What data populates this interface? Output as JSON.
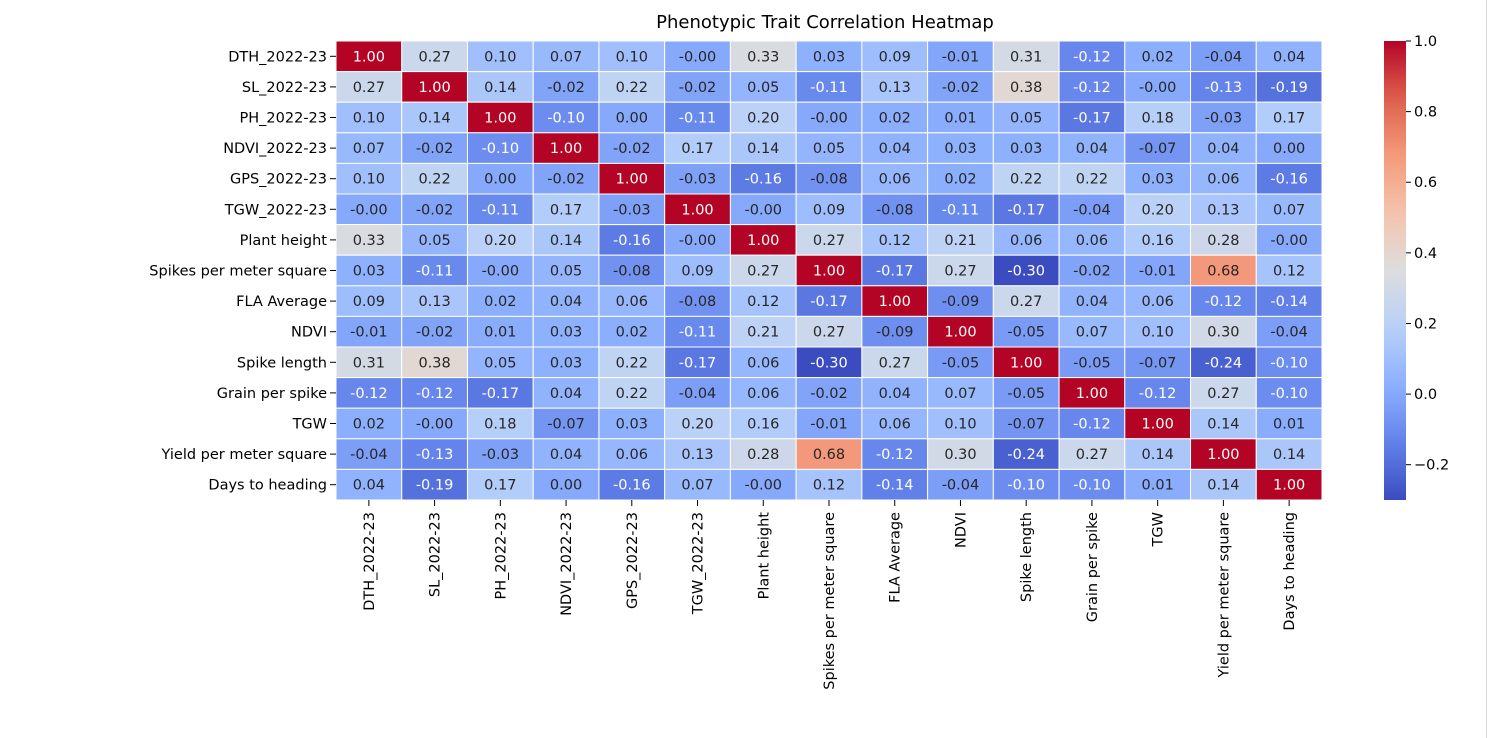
{
  "chart_data": {
    "type": "heatmap",
    "title": "Phenotypic Trait Correlation Heatmap",
    "xlabel": "",
    "ylabel": "",
    "colormap": "coolwarm",
    "color_range": [
      -0.3,
      1.0
    ],
    "colorbar_ticks": [
      -0.2,
      0.0,
      0.2,
      0.4,
      0.6,
      0.8,
      1.0
    ],
    "colorbar_tick_labels": [
      "−0.2",
      "0.0",
      "0.2",
      "0.4",
      "0.6",
      "0.8",
      "1.0"
    ],
    "legend_position": "right",
    "value_format": "0.00",
    "row_labels": [
      "DTH_2022-23",
      "SL_2022-23",
      "PH_2022-23",
      "NDVI_2022-23",
      "GPS_2022-23",
      "TGW_2022-23",
      "Plant height",
      "Spikes per meter square",
      "FLA Average",
      "NDVI",
      "Spike length",
      "Grain per spike",
      "TGW",
      "Yield per meter square",
      "Days to heading"
    ],
    "col_labels": [
      "DTH_2022-23",
      "SL_2022-23",
      "PH_2022-23",
      "NDVI_2022-23",
      "GPS_2022-23",
      "TGW_2022-23",
      "Plant height",
      "Spikes per meter square",
      "FLA Average",
      "NDVI",
      "Spike length",
      "Grain per spike",
      "TGW",
      "Yield per meter square",
      "Days to heading"
    ],
    "values": [
      [
        1.0,
        0.27,
        0.1,
        0.07,
        0.1,
        -0.0,
        0.33,
        0.03,
        0.09,
        -0.01,
        0.31,
        -0.12,
        0.02,
        -0.04,
        0.04
      ],
      [
        0.27,
        1.0,
        0.14,
        -0.02,
        0.22,
        -0.02,
        0.05,
        -0.11,
        0.13,
        -0.02,
        0.38,
        -0.12,
        -0.0,
        -0.13,
        -0.19
      ],
      [
        0.1,
        0.14,
        1.0,
        -0.1,
        0.0,
        -0.11,
        0.2,
        -0.0,
        0.02,
        0.01,
        0.05,
        -0.17,
        0.18,
        -0.03,
        0.17
      ],
      [
        0.07,
        -0.02,
        -0.1,
        1.0,
        -0.02,
        0.17,
        0.14,
        0.05,
        0.04,
        0.03,
        0.03,
        0.04,
        -0.07,
        0.04,
        0.0
      ],
      [
        0.1,
        0.22,
        0.0,
        -0.02,
        1.0,
        -0.03,
        -0.16,
        -0.08,
        0.06,
        0.02,
        0.22,
        0.22,
        0.03,
        0.06,
        -0.16
      ],
      [
        -0.0,
        -0.02,
        -0.11,
        0.17,
        -0.03,
        1.0,
        -0.0,
        0.09,
        -0.08,
        -0.11,
        -0.17,
        -0.04,
        0.2,
        0.13,
        0.07
      ],
      [
        0.33,
        0.05,
        0.2,
        0.14,
        -0.16,
        -0.0,
        1.0,
        0.27,
        0.12,
        0.21,
        0.06,
        0.06,
        0.16,
        0.28,
        -0.0
      ],
      [
        0.03,
        -0.11,
        -0.0,
        0.05,
        -0.08,
        0.09,
        0.27,
        1.0,
        -0.17,
        0.27,
        -0.3,
        -0.02,
        -0.01,
        0.68,
        0.12
      ],
      [
        0.09,
        0.13,
        0.02,
        0.04,
        0.06,
        -0.08,
        0.12,
        -0.17,
        1.0,
        -0.09,
        0.27,
        0.04,
        0.06,
        -0.12,
        -0.14
      ],
      [
        -0.01,
        -0.02,
        0.01,
        0.03,
        0.02,
        -0.11,
        0.21,
        0.27,
        -0.09,
        1.0,
        -0.05,
        0.07,
        0.1,
        0.3,
        -0.04
      ],
      [
        0.31,
        0.38,
        0.05,
        0.03,
        0.22,
        -0.17,
        0.06,
        -0.3,
        0.27,
        -0.05,
        1.0,
        -0.05,
        -0.07,
        -0.24,
        -0.1
      ],
      [
        -0.12,
        -0.12,
        -0.17,
        0.04,
        0.22,
        -0.04,
        0.06,
        -0.02,
        0.04,
        0.07,
        -0.05,
        1.0,
        -0.12,
        0.27,
        -0.1
      ],
      [
        0.02,
        -0.0,
        0.18,
        -0.07,
        0.03,
        0.2,
        0.16,
        -0.01,
        0.06,
        0.1,
        -0.07,
        -0.12,
        1.0,
        0.14,
        0.01
      ],
      [
        -0.04,
        -0.13,
        -0.03,
        0.04,
        0.06,
        0.13,
        0.28,
        0.68,
        -0.12,
        0.3,
        -0.24,
        0.27,
        0.14,
        1.0,
        0.14
      ],
      [
        0.04,
        -0.19,
        0.17,
        0.0,
        -0.16,
        0.07,
        -0.0,
        0.12,
        -0.14,
        -0.04,
        -0.1,
        -0.1,
        0.01,
        0.14,
        1.0
      ]
    ]
  }
}
